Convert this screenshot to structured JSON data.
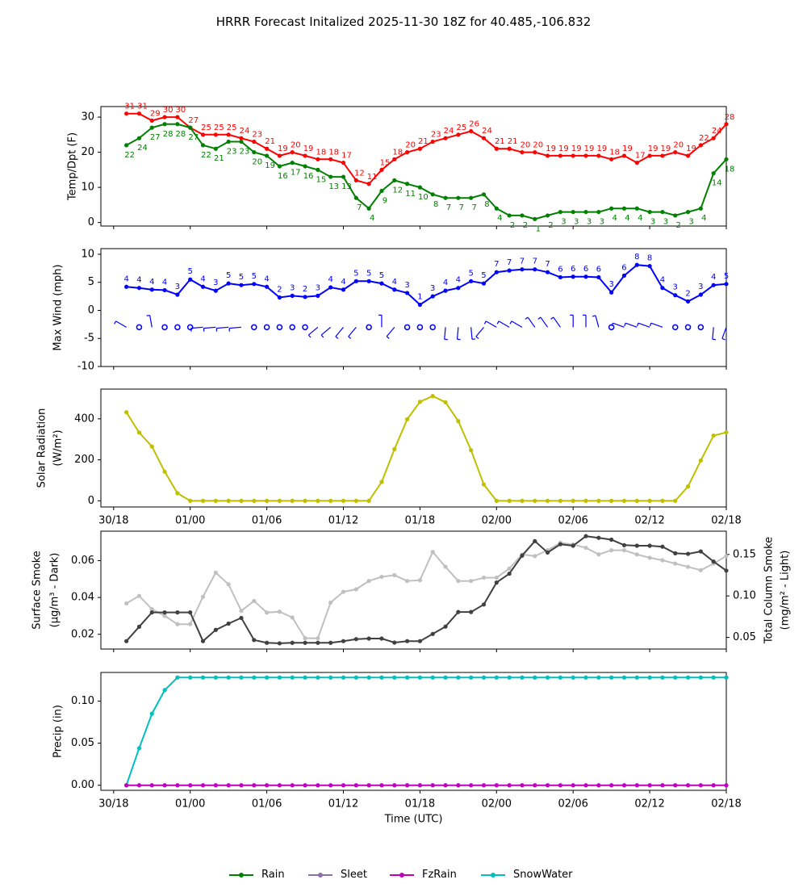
{
  "title": "HRRR Forecast Initalized 2025-11-30 18Z for 40.485,-106.832",
  "colors": {
    "temp": "#ff0000",
    "dewpoint": "#008000",
    "wind": "#0000ff",
    "solar": "#bfbf00",
    "smoke_dark": "#404040",
    "smoke_light": "#c0c0c0",
    "rain": "#008000",
    "sleet": "#8c6fa6",
    "fzrain": "#bf00bf",
    "snow": "#00bfbf"
  },
  "chart_data": [
    {
      "type": "line",
      "id": "temp",
      "ylabel": "Temp/Dpt (F)",
      "ylim": [
        -1,
        33
      ],
      "yticks": [
        0,
        10,
        20,
        30
      ],
      "x_hours": {
        "start": 1,
        "end": 48
      },
      "series": [
        {
          "name": "Temp",
          "color": "#ff0000",
          "values": [
            31,
            31,
            29,
            30,
            30,
            27,
            25,
            25,
            25,
            24,
            23,
            21,
            19,
            20,
            19,
            18,
            18,
            17,
            12,
            11,
            15,
            18,
            20,
            21,
            23,
            24,
            25,
            26,
            24,
            21,
            21,
            20,
            20,
            19,
            19,
            19,
            19,
            19,
            18,
            19,
            17,
            19,
            19,
            20,
            19,
            22,
            24,
            28
          ]
        },
        {
          "name": "Dewpoint",
          "color": "#008000",
          "values": [
            22,
            24,
            27,
            28,
            28,
            27,
            22,
            21,
            23,
            23,
            20,
            19,
            16,
            17,
            16,
            15,
            13,
            13,
            7,
            4,
            9,
            12,
            11,
            10,
            8,
            7,
            7,
            7,
            8,
            4,
            2,
            2,
            1,
            2,
            3,
            3,
            3,
            3,
            4,
            4,
            4,
            3,
            3,
            2,
            3,
            4,
            14,
            18
          ]
        }
      ],
      "temp_labels": [
        "31",
        "31",
        "29",
        "30",
        "30",
        "27",
        "25",
        "25",
        "25",
        "24",
        "23",
        "21",
        "19",
        "20",
        "19",
        "18",
        "18",
        "17",
        "12",
        "11",
        "15",
        "18",
        "20",
        "21",
        "23",
        "24",
        "25",
        "26",
        "24",
        "21",
        "21",
        "20",
        "20",
        "19",
        "19",
        "19",
        "19",
        "19",
        "18",
        "19",
        "17",
        "19",
        "19",
        "20",
        "19",
        "22",
        "24",
        "28"
      ],
      "dew_labels": [
        "22",
        "24",
        "27",
        "28",
        "28",
        "27",
        "22",
        "21",
        "23",
        "23",
        "20",
        "19",
        "16",
        "17",
        "16",
        "15",
        "13",
        "13",
        "7",
        "4",
        "9",
        "12",
        "11",
        "10",
        "8",
        "7",
        "7",
        "7",
        "8",
        "4",
        "2",
        "2",
        "1",
        "2",
        "3",
        "3",
        "3",
        "3",
        "4",
        "4",
        "4",
        "3",
        "3",
        "2",
        "3",
        "4",
        "14",
        "18"
      ]
    },
    {
      "type": "line",
      "id": "wind",
      "ylabel": "Max Wind (mph)",
      "ylim": [
        -10,
        11
      ],
      "yticks": [
        -10,
        -5,
        0,
        5,
        10
      ],
      "x_hours": {
        "start": 1,
        "end": 48
      },
      "series": [
        {
          "name": "Max Wind",
          "color": "#0000ff",
          "values": [
            4.2,
            4.0,
            3.7,
            3.6,
            2.8,
            5.5,
            4.2,
            3.5,
            4.8,
            4.5,
            4.7,
            4.2,
            2.3,
            2.6,
            2.4,
            2.6,
            4.1,
            3.7,
            5.2,
            5.2,
            4.8,
            3.7,
            3.1,
            1.0,
            2.5,
            3.5,
            4.0,
            5.2,
            4.8,
            6.8,
            7.1,
            7.3,
            7.3,
            6.8,
            5.9,
            6.0,
            6.0,
            5.9,
            3.2,
            6.2,
            8.1,
            7.9,
            4.0,
            2.7,
            1.6,
            2.8,
            4.5,
            4.7
          ]
        }
      ],
      "wind_labels": [
        "4",
        "4",
        "4",
        "4",
        "3",
        "5",
        "4",
        "3",
        "5",
        "5",
        "5",
        "4",
        "2",
        "3",
        "2",
        "3",
        "4",
        "4",
        "5",
        "5",
        "5",
        "4",
        "3",
        "1",
        "3",
        "4",
        "4",
        "5",
        "5",
        "7",
        "7",
        "7",
        "7",
        "7",
        "6",
        "6",
        "6",
        "6",
        "3",
        "6",
        "8",
        "8",
        "4",
        "3",
        "2",
        "3",
        "4",
        "5"
      ],
      "barb_dirs": [
        300,
        0,
        350,
        0,
        0,
        0,
        265,
        265,
        265,
        265,
        0,
        0,
        0,
        0,
        0,
        230,
        230,
        220,
        220,
        0,
        0,
        220,
        0,
        0,
        0,
        185,
        185,
        175,
        220,
        300,
        300,
        300,
        325,
        325,
        325,
        360,
        360,
        345,
        0,
        290,
        290,
        290,
        290,
        0,
        0,
        0,
        185,
        200
      ],
      "barb_calm": [
        false,
        true,
        false,
        true,
        true,
        true,
        false,
        false,
        false,
        false,
        true,
        true,
        true,
        true,
        true,
        false,
        false,
        false,
        false,
        true,
        false,
        false,
        true,
        true,
        true,
        false,
        false,
        false,
        false,
        false,
        false,
        false,
        false,
        false,
        false,
        false,
        false,
        false,
        true,
        false,
        false,
        false,
        false,
        true,
        true,
        true,
        false,
        false
      ]
    },
    {
      "type": "line",
      "id": "solar",
      "ylabel": "Solar Radiation",
      "ylabel2": "(W/m²)",
      "ylim": [
        -30,
        545
      ],
      "yticks": [
        0,
        200,
        400
      ],
      "xtick_labels": [
        "30/18",
        "01/00",
        "01/06",
        "01/12",
        "01/18",
        "02/00",
        "02/06",
        "02/12",
        "02/18"
      ],
      "series": [
        {
          "name": "Solar",
          "color": "#bfbf00",
          "values": [
            432,
            333,
            265,
            142,
            37,
            0,
            0,
            0,
            0,
            0,
            0,
            0,
            0,
            0,
            0,
            0,
            0,
            0,
            0,
            0,
            92,
            252,
            398,
            483,
            511,
            481,
            389,
            247,
            80,
            0,
            0,
            0,
            0,
            0,
            0,
            0,
            0,
            0,
            0,
            0,
            0,
            0,
            0,
            0,
            70,
            197,
            318,
            334
          ]
        }
      ]
    },
    {
      "type": "line",
      "id": "smoke",
      "ylabel": "Surface Smoke",
      "ylabel2": "(μg/m³ - Dark)",
      "ylabel_right": "Total Column Smoke",
      "ylabel_right2": "(mg/m² - Light)",
      "ylim": [
        0.012,
        0.076
      ],
      "yticks": [
        0.02,
        0.04,
        0.06
      ],
      "ylim_right": [
        0.036,
        0.178
      ],
      "yticks_right": [
        0.05,
        0.1,
        0.15
      ],
      "series": [
        {
          "name": "Surface Smoke",
          "color": "#404040",
          "values": [
            0.0163,
            0.0241,
            0.0319,
            0.0319,
            0.0319,
            0.0319,
            0.0163,
            0.0224,
            0.0258,
            0.0289,
            0.0169,
            0.0154,
            0.0151,
            0.0154,
            0.0154,
            0.0154,
            0.0154,
            0.0163,
            0.0174,
            0.0177,
            0.0177,
            0.0155,
            0.0163,
            0.0163,
            0.0202,
            0.0242,
            0.0321,
            0.0321,
            0.0362,
            0.0481,
            0.0529,
            0.0627,
            0.0706,
            0.0644,
            0.0689,
            0.0681,
            0.0733,
            0.0724,
            0.0714,
            0.0684,
            0.0681,
            0.0681,
            0.0676,
            0.064,
            0.0637,
            0.065,
            0.0595,
            0.0546
          ]
        },
        {
          "name": "Total Column Smoke",
          "color": "#c0c0c0",
          "values": [
            0.091,
            0.1,
            0.084,
            0.076,
            0.066,
            0.066,
            0.099,
            0.128,
            0.114,
            0.082,
            0.094,
            0.08,
            0.081,
            0.074,
            0.049,
            0.049,
            0.092,
            0.105,
            0.108,
            0.118,
            0.123,
            0.125,
            0.118,
            0.119,
            0.153,
            0.135,
            0.118,
            0.118,
            0.122,
            0.122,
            0.133,
            0.15,
            0.148,
            0.155,
            0.164,
            0.162,
            0.158,
            0.15,
            0.155,
            0.155,
            0.15,
            0.146,
            0.143,
            0.139,
            0.135,
            0.131,
            0.139,
            0.148
          ]
        }
      ]
    },
    {
      "type": "line",
      "id": "precip",
      "ylabel": "Precip (in)",
      "ylim": [
        -0.006,
        0.134
      ],
      "yticks": [
        0.0,
        0.05,
        0.1
      ],
      "xlabel": "Time (UTC)",
      "xtick_labels": [
        "30/18",
        "01/00",
        "01/06",
        "01/12",
        "01/18",
        "02/00",
        "02/06",
        "02/12",
        "02/18"
      ],
      "series": [
        {
          "name": "SnowWater",
          "color": "#00bfbf",
          "values": [
            0.0,
            0.044,
            0.085,
            0.113,
            0.128,
            0.128,
            0.128,
            0.128,
            0.128,
            0.128,
            0.128,
            0.128,
            0.128,
            0.128,
            0.128,
            0.128,
            0.128,
            0.128,
            0.128,
            0.128,
            0.128,
            0.128,
            0.128,
            0.128,
            0.128,
            0.128,
            0.128,
            0.128,
            0.128,
            0.128,
            0.128,
            0.128,
            0.128,
            0.128,
            0.128,
            0.128,
            0.128,
            0.128,
            0.128,
            0.128,
            0.128,
            0.128,
            0.128,
            0.128,
            0.128,
            0.128,
            0.128,
            0.128
          ]
        },
        {
          "name": "FzRain",
          "color": "#bf00bf",
          "values": [
            0,
            0,
            0,
            0,
            0,
            0,
            0,
            0,
            0,
            0,
            0,
            0,
            0,
            0,
            0,
            0,
            0,
            0,
            0,
            0,
            0,
            0,
            0,
            0,
            0,
            0,
            0,
            0,
            0,
            0,
            0,
            0,
            0,
            0,
            0,
            0,
            0,
            0,
            0,
            0,
            0,
            0,
            0,
            0,
            0,
            0,
            0,
            0
          ]
        }
      ]
    }
  ],
  "legend": [
    {
      "label": "Rain",
      "color": "#008000"
    },
    {
      "label": "Sleet",
      "color": "#8c6fa6"
    },
    {
      "label": "FzRain",
      "color": "#bf00bf"
    },
    {
      "label": "SnowWater",
      "color": "#00bfbf"
    }
  ]
}
